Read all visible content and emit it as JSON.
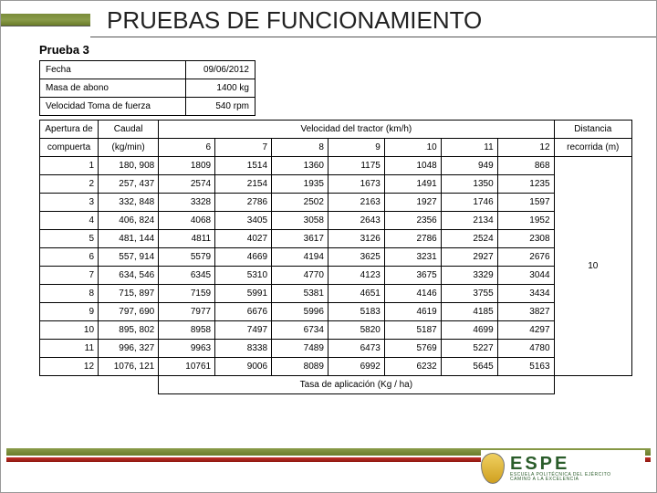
{
  "title": "PRUEBAS DE FUNCIONAMIENTO",
  "subtitle": "Prueba 3",
  "meta": [
    {
      "label": "Fecha",
      "value": "09/06/2012"
    },
    {
      "label": "Masa de abono",
      "value": "1400 kg"
    },
    {
      "label": "Velocidad Toma de fuerza",
      "value": "540 rpm"
    }
  ],
  "table": {
    "header_apertura": "Apertura de",
    "header_compuerta": "compuerta",
    "header_caudal": "Caudal",
    "header_caudal_unit": "(kg/min)",
    "header_velocidad": "Velocidad del tractor (km/h)",
    "header_distancia": "Distancia",
    "header_recorrida": "recorrida (m)",
    "speed_cols": [
      "6",
      "7",
      "8",
      "9",
      "10",
      "11",
      "12"
    ],
    "rows": [
      {
        "ap": "1",
        "cau": "180, 908",
        "v": [
          "1809",
          "1514",
          "1360",
          "1175",
          "1048",
          "949",
          "868"
        ]
      },
      {
        "ap": "2",
        "cau": "257, 437",
        "v": [
          "2574",
          "2154",
          "1935",
          "1673",
          "1491",
          "1350",
          "1235"
        ]
      },
      {
        "ap": "3",
        "cau": "332, 848",
        "v": [
          "3328",
          "2786",
          "2502",
          "2163",
          "1927",
          "1746",
          "1597"
        ]
      },
      {
        "ap": "4",
        "cau": "406, 824",
        "v": [
          "4068",
          "3405",
          "3058",
          "2643",
          "2356",
          "2134",
          "1952"
        ]
      },
      {
        "ap": "5",
        "cau": "481, 144",
        "v": [
          "4811",
          "4027",
          "3617",
          "3126",
          "2786",
          "2524",
          "2308"
        ]
      },
      {
        "ap": "6",
        "cau": "557, 914",
        "v": [
          "5579",
          "4669",
          "4194",
          "3625",
          "3231",
          "2927",
          "2676"
        ]
      },
      {
        "ap": "7",
        "cau": "634, 546",
        "v": [
          "6345",
          "5310",
          "4770",
          "4123",
          "3675",
          "3329",
          "3044"
        ]
      },
      {
        "ap": "8",
        "cau": "715, 897",
        "v": [
          "7159",
          "5991",
          "5381",
          "4651",
          "4146",
          "3755",
          "3434"
        ]
      },
      {
        "ap": "9",
        "cau": "797, 690",
        "v": [
          "7977",
          "6676",
          "5996",
          "5183",
          "4619",
          "4185",
          "3827"
        ]
      },
      {
        "ap": "10",
        "cau": "895, 802",
        "v": [
          "8958",
          "7497",
          "6734",
          "5820",
          "5187",
          "4699",
          "4297"
        ]
      },
      {
        "ap": "11",
        "cau": "996, 327",
        "v": [
          "9963",
          "8338",
          "7489",
          "6473",
          "5769",
          "5227",
          "4780"
        ]
      },
      {
        "ap": "12",
        "cau": "1076, 121",
        "v": [
          "10761",
          "9006",
          "8089",
          "6992",
          "6232",
          "5645",
          "5163"
        ]
      }
    ],
    "distancia_value": "10",
    "footer": "Tasa de aplicación  (Kg / ha)"
  },
  "logo": {
    "big": "ESPE",
    "line1": "ESCUELA POLITÉCNICA DEL EJÉRCITO",
    "line2": "CAMINO A LA EXCELENCIA"
  },
  "colors": {
    "olive": "#7a8c3a",
    "red": "#b02820",
    "text": "#222222"
  }
}
